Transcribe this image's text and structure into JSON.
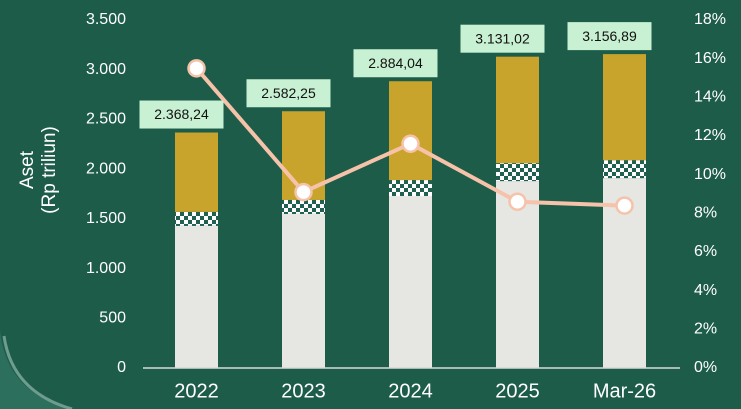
{
  "chart_data": {
    "type": "bar",
    "ylabel": [
      "Aset",
      "(Rp triliun)"
    ],
    "categories": [
      "2022",
      "2023",
      "2024",
      "2025",
      "Mar-26"
    ],
    "series": [
      {
        "color": "#e6e6e3",
        "values": [
          1430,
          1550,
          1730,
          1880,
          1910
        ]
      },
      {
        "color": "checker",
        "values": [
          140,
          140,
          160,
          180,
          180
        ]
      },
      {
        "color": "#c9a42c",
        "values": [
          798.24,
          892.25,
          994.04,
          1071.02,
          1066.89
        ]
      },
      {
        "type": "line",
        "axis": "y2",
        "color": "#f6c3aa",
        "values": [
          15.5,
          9.1,
          11.6,
          8.6,
          8.4
        ]
      }
    ],
    "totals": [
      2368.24,
      2582.25,
      2884.04,
      3131.02,
      3156.89
    ],
    "value_labels": [
      "2.368,24",
      "2.582,25",
      "2.884,04",
      "3.131,02",
      "3.156,89"
    ],
    "ylim": [
      0,
      3500
    ],
    "yticks": [
      0,
      500,
      {
        "value": 1000,
        "label": "1.000"
      },
      {
        "value": 1500,
        "label": "1.500"
      },
      {
        "value": 2000,
        "label": "2.000"
      },
      {
        "value": 2500,
        "label": "2.500"
      },
      {
        "value": 3000,
        "label": "3.000"
      },
      {
        "value": 3500,
        "label": "3.500"
      }
    ],
    "y2lim": [
      0,
      18
    ],
    "y2ticks": [
      {
        "value": 0,
        "label": "0%"
      },
      {
        "value": 2,
        "label": "2%"
      },
      {
        "value": 4,
        "label": "4%"
      },
      {
        "value": 6,
        "label": "6%"
      },
      {
        "value": 8,
        "label": "8%"
      },
      {
        "value": 10,
        "label": "10%"
      },
      {
        "value": 12,
        "label": "12%"
      },
      {
        "value": 14,
        "label": "14%"
      },
      {
        "value": 16,
        "label": "16%"
      },
      {
        "value": 18,
        "label": "18%"
      }
    ]
  }
}
